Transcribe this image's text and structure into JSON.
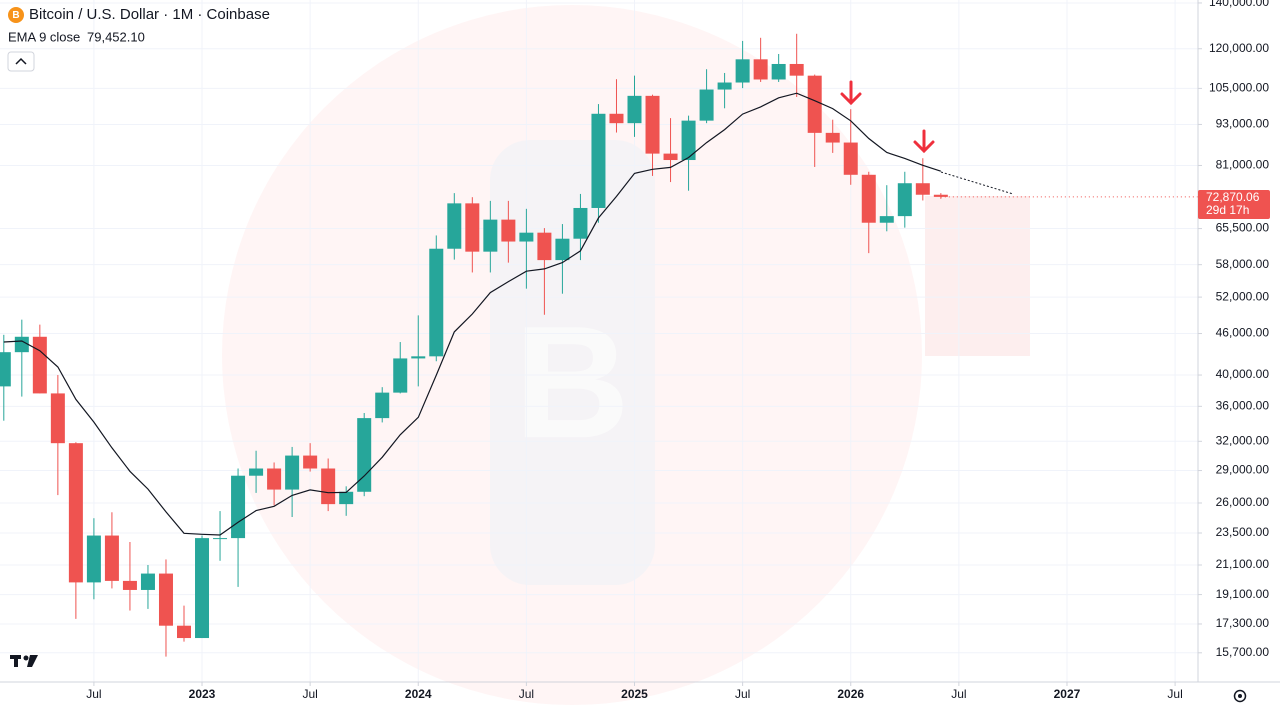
{
  "chart_data": {
    "type": "candlestick",
    "title": "Bitcoin / U.S. Dollar · 1M · Coinbase",
    "categories": [
      "2022-02",
      "2022-03",
      "2022-04",
      "2022-05",
      "2022-06",
      "2022-07",
      "2022-08",
      "2022-09",
      "2022-10",
      "2022-11",
      "2022-12",
      "2023-01",
      "2023-02",
      "2023-03",
      "2023-04",
      "2023-05",
      "2023-06",
      "2023-07",
      "2023-08",
      "2023-09",
      "2023-10",
      "2023-11",
      "2023-12",
      "2024-01",
      "2024-02",
      "2024-03",
      "2024-04",
      "2024-05",
      "2024-06",
      "2024-07",
      "2024-08",
      "2024-09",
      "2024-10",
      "2024-11",
      "2024-12",
      "2025-01",
      "2025-02",
      "2025-03",
      "2025-04",
      "2025-05",
      "2025-06",
      "2025-07",
      "2025-08",
      "2025-09",
      "2025-10",
      "2025-11",
      "2025-12",
      "2026-01",
      "2026-02",
      "2026-03",
      "2026-04",
      "2026-05",
      "2026-06"
    ],
    "open": [
      38500,
      43200,
      45500,
      37600,
      31800,
      19900,
      23300,
      20000,
      19400,
      20500,
      17200,
      16500,
      23100,
      23100,
      28500,
      29200,
      27200,
      30500,
      29200,
      25900,
      27000,
      34600,
      37700,
      42300,
      42600,
      61200,
      71300,
      60600,
      67500,
      62700,
      64600,
      58900,
      63300,
      70200,
      96400,
      93400,
      102400,
      84300,
      82500,
      94200,
      104600,
      107100,
      115800,
      108200,
      114000,
      109600,
      90400,
      87500,
      78500,
      66800,
      68300,
      76300,
      73400
    ],
    "high": [
      45800,
      48200,
      47400,
      40000,
      31900,
      24700,
      25200,
      22800,
      21100,
      21500,
      18400,
      23300,
      25300,
      29200,
      31000,
      29800,
      31400,
      31800,
      30200,
      27500,
      35200,
      38400,
      44700,
      48900,
      64000,
      73800,
      72800,
      71900,
      71900,
      70000,
      65600,
      66500,
      73600,
      99600,
      108300,
      109600,
      102800,
      95000,
      95800,
      112000,
      110600,
      123200,
      124500,
      117900,
      126200,
      110000,
      94500,
      97900,
      79300,
      75800,
      79300,
      83000,
      73800
    ],
    "low": [
      34300,
      37200,
      37600,
      26700,
      17600,
      18800,
      19500,
      18100,
      18200,
      15500,
      16300,
      16500,
      21400,
      19600,
      26900,
      25800,
      24800,
      28900,
      25300,
      24900,
      26600,
      34100,
      37600,
      38500,
      41900,
      59000,
      56500,
      56500,
      58400,
      53500,
      49000,
      52600,
      58900,
      66800,
      90500,
      89200,
      78200,
      76600,
      74400,
      93400,
      98200,
      105100,
      107300,
      107300,
      102000,
      80600,
      84500,
      75900,
      60300,
      64900,
      65700,
      72000,
      72400
    ],
    "close": [
      43200,
      45500,
      37600,
      31800,
      19900,
      23300,
      20000,
      19400,
      20500,
      17200,
      16500,
      23100,
      23100,
      28500,
      29200,
      27200,
      30500,
      29200,
      25900,
      27000,
      34600,
      37700,
      42300,
      42600,
      61200,
      71300,
      60600,
      67500,
      62700,
      64600,
      58900,
      63300,
      70200,
      96400,
      93400,
      102400,
      84300,
      82500,
      94200,
      104600,
      107100,
      115800,
      108200,
      114000,
      109600,
      90400,
      87500,
      78500,
      66800,
      68300,
      76300,
      73400,
      72870.06
    ],
    "up_color": "#26a69a",
    "down_color": "#ef5350",
    "last_close_label": "72,870.06",
    "countdown": "29d 17h",
    "ema": {
      "name": "EMA 9 close",
      "color": "#131722",
      "last_label": "79,452.10",
      "values": [
        44700,
        44860,
        43410,
        41090,
        36850,
        34140,
        31310,
        28930,
        27240,
        25230,
        23480,
        23400,
        23340,
        24370,
        25340,
        25710,
        26670,
        27170,
        26920,
        26940,
        28470,
        30320,
        32710,
        34690,
        39990,
        46250,
        49120,
        52800,
        54780,
        56740,
        57180,
        58400,
        60760,
        67890,
        72990,
        78870,
        79960,
        80470,
        83210,
        87490,
        91410,
        96290,
        98670,
        101740,
        103310,
        100730,
        98080,
        94160,
        88690,
        84610,
        82950,
        81040,
        79452.1
      ]
    },
    "log_scale": true,
    "grid": true,
    "ylim": [
      14230,
      141400
    ],
    "yticks": [
      {
        "value": 140000,
        "label": "140,000.00"
      },
      {
        "value": 120000,
        "label": "120,000.00"
      },
      {
        "value": 105000,
        "label": "105,000.00"
      },
      {
        "value": 93000,
        "label": "93,000.00"
      },
      {
        "value": 81000,
        "label": "81,000.00"
      },
      {
        "value": 65500,
        "label": "65,500.00"
      },
      {
        "value": 58000,
        "label": "58,000.00"
      },
      {
        "value": 52000,
        "label": "52,000.00"
      },
      {
        "value": 46000,
        "label": "46,000.00"
      },
      {
        "value": 40000,
        "label": "40,000.00"
      },
      {
        "value": 36000,
        "label": "36,000.00"
      },
      {
        "value": 32000,
        "label": "32,000.00"
      },
      {
        "value": 29000,
        "label": "29,000.00"
      },
      {
        "value": 26000,
        "label": "26,000.00"
      },
      {
        "value": 23500,
        "label": "23,500.00"
      },
      {
        "value": 21100,
        "label": "21,100.00"
      },
      {
        "value": 19100,
        "label": "19,100.00"
      },
      {
        "value": 17300,
        "label": "17,300.00"
      },
      {
        "value": 15700,
        "label": "15,700.00"
      }
    ],
    "xticks": [
      {
        "value": "2022-07",
        "label": "Jul"
      },
      {
        "value": "2023-01",
        "label": "2023"
      },
      {
        "value": "2023-07",
        "label": "Jul"
      },
      {
        "value": "2024-01",
        "label": "2024"
      },
      {
        "value": "2024-07",
        "label": "Jul"
      },
      {
        "value": "2025-01",
        "label": "2025"
      },
      {
        "value": "2025-07",
        "label": "Jul"
      },
      {
        "value": "2026-01",
        "label": "2026"
      },
      {
        "value": "2026-07",
        "label": "Jul"
      },
      {
        "value": "2027-01",
        "label": "2027"
      },
      {
        "value": "2027-07",
        "label": "Jul"
      }
    ]
  }
}
